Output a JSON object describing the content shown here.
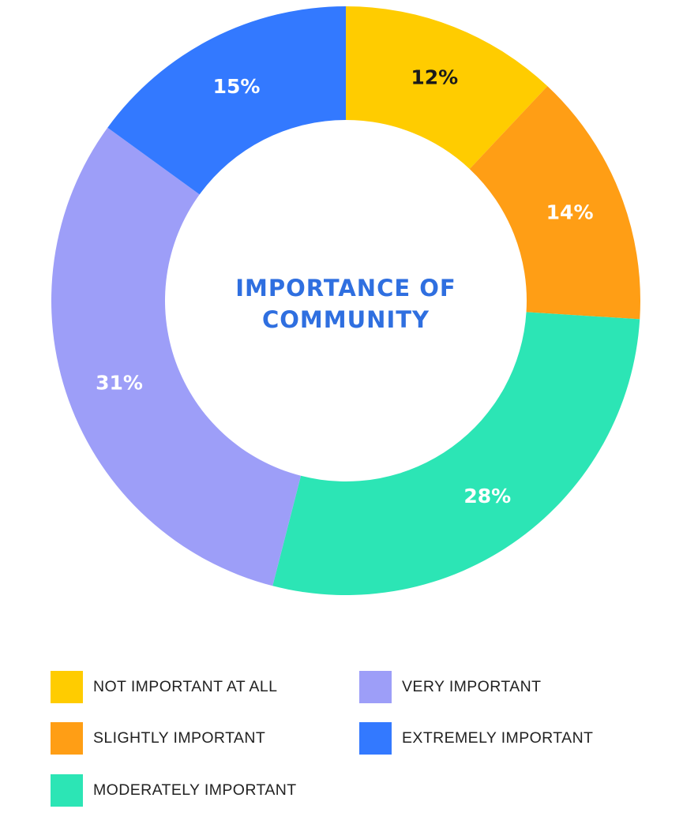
{
  "chart_data": {
    "type": "pie",
    "title": "IMPORTANCE OF COMMUNITY",
    "subtype": "donut",
    "categories": [
      "NOT IMPORTANT AT ALL",
      "SLIGHTLY IMPORTANT",
      "MODERATELY IMPORTANT",
      "VERY IMPORTANT",
      "EXTREMELY IMPORTANT"
    ],
    "values": [
      12,
      14,
      28,
      31,
      15
    ],
    "value_labels": [
      "12%",
      "14%",
      "28%",
      "31%",
      "15%"
    ],
    "colors": [
      "#FFCC00",
      "#FF9E15",
      "#2CE5B5",
      "#9D9EF8",
      "#3379FF"
    ],
    "label_colors": [
      "#1a1a1a",
      "#ffffff",
      "#ffffff",
      "#ffffff",
      "#ffffff"
    ],
    "title_color": "#2F6FE0",
    "legend_position": "bottom"
  }
}
